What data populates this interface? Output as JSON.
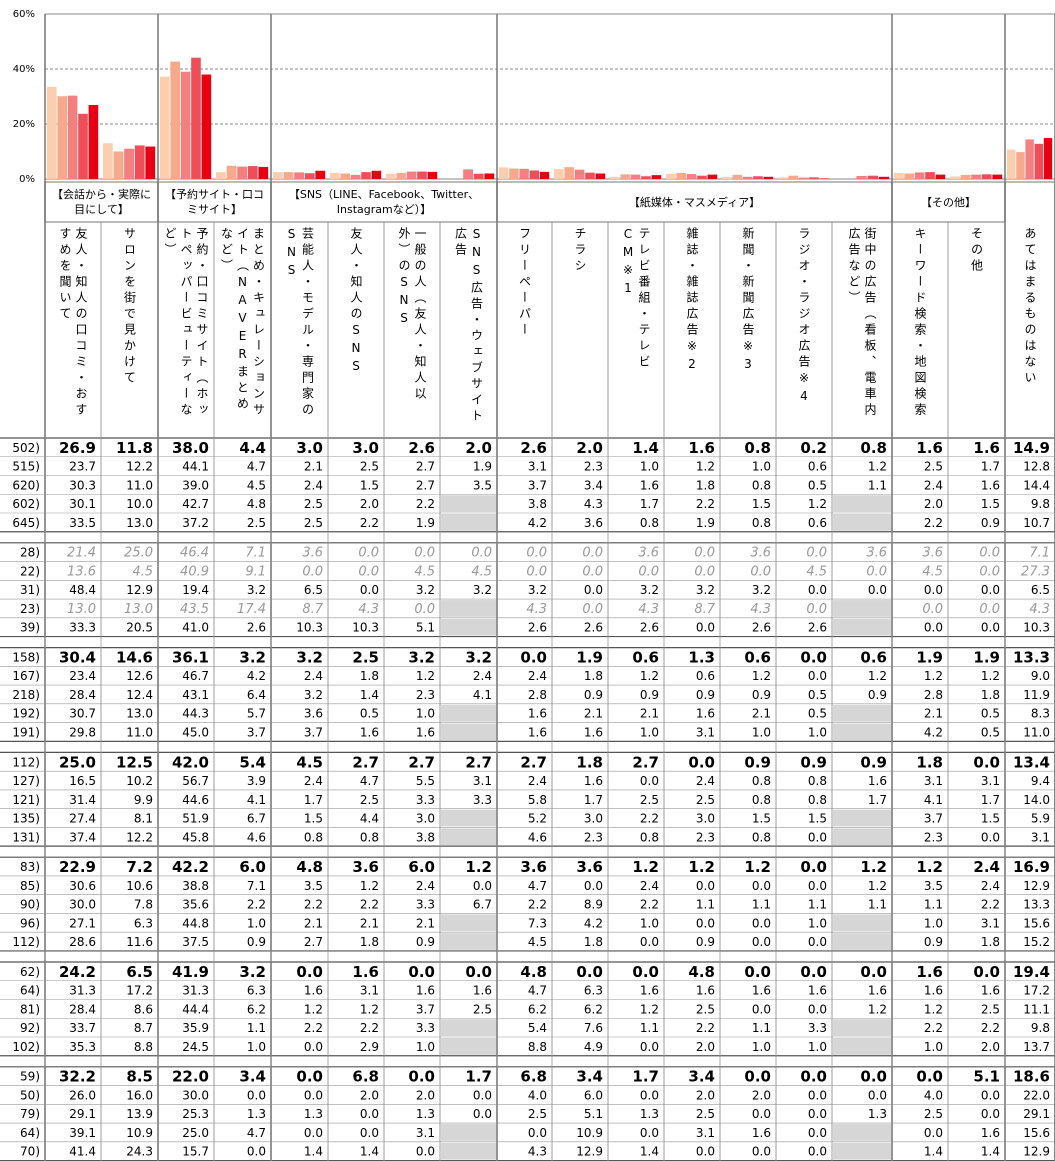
{
  "chart": {
    "ylim": [
      0,
      60
    ],
    "yticks": [
      {
        "value": 0,
        "label": "0%"
      },
      {
        "value": 20,
        "label": "20%"
      },
      {
        "value": 40,
        "label": "40%"
      },
      {
        "value": 60,
        "label": "60%"
      }
    ],
    "grid": true,
    "series_colors": [
      "#e60012",
      "#ef4e58",
      "#f47f80",
      "#f7a98b",
      "#fbcfae"
    ]
  },
  "header": {
    "groups": [
      {
        "label": "【会話から・実際に目にして】",
        "columns": [
          "友人・知人の口コミ・おすすめを聞いて",
          "サロンを街で見かけて"
        ]
      },
      {
        "label": "【予約サイト・口コミサイト】",
        "columns": [
          "予約・口コミサイト（ホットペッパービューティーなど）",
          "まとめ・キュレーションサイト（NAVERまとめなど）"
        ]
      },
      {
        "label": "【SNS（LINE、Facebook、Twitter、Instagramなど）】",
        "columns": [
          "芸能人・モデル・専門家のSNS",
          "友人・知人のSNS",
          "一般の人（友人・知人以外）のSNS",
          "SNS広告・ウェブサイト広告"
        ]
      },
      {
        "label": "【紙媒体・マスメディア】",
        "columns": [
          "フリーペーパー",
          "チラシ",
          "テレビ番組・テレビCM※1",
          "雑誌・雑誌広告※2",
          "新聞・新聞広告※3",
          "ラジオ・ラジオ広告※4",
          "街中の広告（看板、電車内広告など）"
        ]
      },
      {
        "label": "【その他】",
        "columns": [
          "キーワード検索・地図検索",
          "その他"
        ]
      },
      {
        "columns": [
          "あてはまるものはない"
        ]
      }
    ]
  },
  "table": {
    "blocks": [
      {
        "rows": [
          {
            "label": "502)",
            "style": "bold",
            "values": [
              "26.9",
              "11.8",
              "38.0",
              "4.4",
              "3.0",
              "3.0",
              "2.6",
              "2.0",
              "2.6",
              "2.0",
              "1.4",
              "1.6",
              "0.8",
              "0.2",
              "0.8",
              "1.6",
              "1.6",
              "14.9"
            ]
          },
          {
            "label": "515)",
            "values": [
              "23.7",
              "12.2",
              "44.1",
              "4.7",
              "2.1",
              "2.5",
              "2.7",
              "1.9",
              "3.1",
              "2.3",
              "1.0",
              "1.2",
              "1.0",
              "0.6",
              "1.2",
              "2.5",
              "1.7",
              "12.8"
            ]
          },
          {
            "label": "620)",
            "values": [
              "30.3",
              "11.0",
              "39.0",
              "4.5",
              "2.4",
              "1.5",
              "2.7",
              "3.5",
              "3.7",
              "3.4",
              "1.6",
              "1.8",
              "0.8",
              "0.5",
              "1.1",
              "2.4",
              "1.6",
              "14.4"
            ]
          },
          {
            "label": "602)",
            "values": [
              "30.1",
              "10.0",
              "42.7",
              "4.8",
              "2.5",
              "2.0",
              "2.2",
              null,
              "3.8",
              "4.3",
              "1.7",
              "2.2",
              "1.5",
              "1.2",
              null,
              "2.0",
              "1.5",
              "9.8"
            ]
          },
          {
            "label": "645)",
            "values": [
              "33.5",
              "13.0",
              "37.2",
              "2.5",
              "2.5",
              "2.2",
              "1.9",
              null,
              "4.2",
              "3.6",
              "0.8",
              "1.9",
              "0.8",
              "0.6",
              null,
              "2.2",
              "0.9",
              "10.7"
            ]
          }
        ]
      },
      {
        "rows": [
          {
            "label": "28)",
            "style": "italic",
            "values": [
              "21.4",
              "25.0",
              "46.4",
              "7.1",
              "3.6",
              "0.0",
              "0.0",
              "0.0",
              "0.0",
              "0.0",
              "3.6",
              "0.0",
              "3.6",
              "0.0",
              "3.6",
              "3.6",
              "0.0",
              "7.1"
            ]
          },
          {
            "label": "22)",
            "style": "italic",
            "values": [
              "13.6",
              "4.5",
              "40.9",
              "9.1",
              "0.0",
              "0.0",
              "4.5",
              "4.5",
              "0.0",
              "0.0",
              "0.0",
              "0.0",
              "0.0",
              "4.5",
              "0.0",
              "4.5",
              "0.0",
              "27.3"
            ]
          },
          {
            "label": "31)",
            "values": [
              "48.4",
              "12.9",
              "19.4",
              "3.2",
              "6.5",
              "0.0",
              "3.2",
              "3.2",
              "3.2",
              "0.0",
              "3.2",
              "3.2",
              "3.2",
              "0.0",
              "0.0",
              "0.0",
              "0.0",
              "6.5"
            ]
          },
          {
            "label": "23)",
            "style": "italic",
            "values": [
              "13.0",
              "13.0",
              "43.5",
              "17.4",
              "8.7",
              "4.3",
              "0.0",
              null,
              "4.3",
              "0.0",
              "4.3",
              "8.7",
              "4.3",
              "0.0",
              null,
              "0.0",
              "0.0",
              "4.3"
            ]
          },
          {
            "label": "39)",
            "values": [
              "33.3",
              "20.5",
              "41.0",
              "2.6",
              "10.3",
              "10.3",
              "5.1",
              null,
              "2.6",
              "2.6",
              "2.6",
              "0.0",
              "2.6",
              "2.6",
              null,
              "0.0",
              "0.0",
              "10.3"
            ]
          }
        ]
      },
      {
        "rows": [
          {
            "label": "158)",
            "style": "bold",
            "values": [
              "30.4",
              "14.6",
              "36.1",
              "3.2",
              "3.2",
              "2.5",
              "3.2",
              "3.2",
              "0.0",
              "1.9",
              "0.6",
              "1.3",
              "0.6",
              "0.0",
              "0.6",
              "1.9",
              "1.9",
              "13.3"
            ]
          },
          {
            "label": "167)",
            "values": [
              "23.4",
              "12.6",
              "46.7",
              "4.2",
              "2.4",
              "1.8",
              "1.2",
              "2.4",
              "2.4",
              "1.8",
              "1.2",
              "0.6",
              "1.2",
              "0.0",
              "1.2",
              "1.2",
              "1.2",
              "9.0"
            ]
          },
          {
            "label": "218)",
            "values": [
              "28.4",
              "12.4",
              "43.1",
              "6.4",
              "3.2",
              "1.4",
              "2.3",
              "4.1",
              "2.8",
              "0.9",
              "0.9",
              "0.9",
              "0.9",
              "0.5",
              "0.9",
              "2.8",
              "1.8",
              "11.9"
            ]
          },
          {
            "label": "192)",
            "values": [
              "30.7",
              "13.0",
              "44.3",
              "5.7",
              "3.6",
              "0.5",
              "1.0",
              null,
              "1.6",
              "2.1",
              "2.1",
              "1.6",
              "2.1",
              "0.5",
              null,
              "2.1",
              "0.5",
              "8.3"
            ]
          },
          {
            "label": "191)",
            "values": [
              "29.8",
              "11.0",
              "45.0",
              "3.7",
              "3.7",
              "1.6",
              "1.6",
              null,
              "1.6",
              "1.6",
              "1.0",
              "3.1",
              "1.0",
              "1.0",
              null,
              "4.2",
              "0.5",
              "11.0"
            ]
          }
        ]
      },
      {
        "rows": [
          {
            "label": "112)",
            "style": "bold",
            "values": [
              "25.0",
              "12.5",
              "42.0",
              "5.4",
              "4.5",
              "2.7",
              "2.7",
              "2.7",
              "2.7",
              "1.8",
              "2.7",
              "0.0",
              "0.9",
              "0.9",
              "0.9",
              "1.8",
              "0.0",
              "13.4"
            ]
          },
          {
            "label": "127)",
            "values": [
              "16.5",
              "10.2",
              "56.7",
              "3.9",
              "2.4",
              "4.7",
              "5.5",
              "3.1",
              "2.4",
              "1.6",
              "0.0",
              "2.4",
              "0.8",
              "0.8",
              "1.6",
              "3.1",
              "3.1",
              "9.4"
            ]
          },
          {
            "label": "121)",
            "values": [
              "31.4",
              "9.9",
              "44.6",
              "4.1",
              "1.7",
              "2.5",
              "3.3",
              "3.3",
              "5.8",
              "1.7",
              "2.5",
              "2.5",
              "0.8",
              "0.8",
              "1.7",
              "4.1",
              "1.7",
              "14.0"
            ]
          },
          {
            "label": "135)",
            "values": [
              "27.4",
              "8.1",
              "51.9",
              "6.7",
              "1.5",
              "4.4",
              "3.0",
              null,
              "5.2",
              "3.0",
              "2.2",
              "3.0",
              "1.5",
              "1.5",
              null,
              "3.7",
              "1.5",
              "5.9"
            ]
          },
          {
            "label": "131)",
            "values": [
              "37.4",
              "12.2",
              "45.8",
              "4.6",
              "0.8",
              "0.8",
              "3.8",
              null,
              "4.6",
              "2.3",
              "0.8",
              "2.3",
              "0.8",
              "0.0",
              null,
              "2.3",
              "0.0",
              "3.1"
            ]
          }
        ]
      },
      {
        "rows": [
          {
            "label": "83)",
            "style": "bold",
            "values": [
              "22.9",
              "7.2",
              "42.2",
              "6.0",
              "4.8",
              "3.6",
              "6.0",
              "1.2",
              "3.6",
              "3.6",
              "1.2",
              "1.2",
              "1.2",
              "0.0",
              "1.2",
              "1.2",
              "2.4",
              "16.9"
            ]
          },
          {
            "label": "85)",
            "values": [
              "30.6",
              "10.6",
              "38.8",
              "7.1",
              "3.5",
              "1.2",
              "2.4",
              "0.0",
              "4.7",
              "0.0",
              "2.4",
              "0.0",
              "0.0",
              "0.0",
              "1.2",
              "3.5",
              "2.4",
              "12.9"
            ]
          },
          {
            "label": "90)",
            "values": [
              "30.0",
              "7.8",
              "35.6",
              "2.2",
              "2.2",
              "2.2",
              "3.3",
              "6.7",
              "2.2",
              "8.9",
              "2.2",
              "1.1",
              "1.1",
              "1.1",
              "1.1",
              "1.1",
              "2.2",
              "13.3"
            ]
          },
          {
            "label": "96)",
            "values": [
              "27.1",
              "6.3",
              "44.8",
              "1.0",
              "2.1",
              "2.1",
              "2.1",
              null,
              "7.3",
              "4.2",
              "1.0",
              "0.0",
              "0.0",
              "1.0",
              null,
              "1.0",
              "3.1",
              "15.6"
            ]
          },
          {
            "label": "112)",
            "values": [
              "28.6",
              "11.6",
              "37.5",
              "0.9",
              "2.7",
              "1.8",
              "0.9",
              null,
              "4.5",
              "1.8",
              "0.0",
              "0.9",
              "0.0",
              "0.0",
              null,
              "0.9",
              "1.8",
              "15.2"
            ]
          }
        ]
      },
      {
        "rows": [
          {
            "label": "62)",
            "style": "bold",
            "values": [
              "24.2",
              "6.5",
              "41.9",
              "3.2",
              "0.0",
              "1.6",
              "0.0",
              "0.0",
              "4.8",
              "0.0",
              "0.0",
              "4.8",
              "0.0",
              "0.0",
              "0.0",
              "1.6",
              "0.0",
              "19.4"
            ]
          },
          {
            "label": "64)",
            "values": [
              "31.3",
              "17.2",
              "31.3",
              "6.3",
              "1.6",
              "3.1",
              "1.6",
              "1.6",
              "4.7",
              "6.3",
              "1.6",
              "1.6",
              "1.6",
              "1.6",
              "1.6",
              "1.6",
              "1.6",
              "17.2"
            ]
          },
          {
            "label": "81)",
            "values": [
              "28.4",
              "8.6",
              "44.4",
              "6.2",
              "1.2",
              "1.2",
              "3.7",
              "2.5",
              "6.2",
              "6.2",
              "1.2",
              "2.5",
              "0.0",
              "0.0",
              "1.2",
              "1.2",
              "2.5",
              "11.1"
            ]
          },
          {
            "label": "92)",
            "values": [
              "33.7",
              "8.7",
              "35.9",
              "1.1",
              "2.2",
              "2.2",
              "3.3",
              null,
              "5.4",
              "7.6",
              "1.1",
              "2.2",
              "1.1",
              "3.3",
              null,
              "2.2",
              "2.2",
              "9.8"
            ]
          },
          {
            "label": "102)",
            "values": [
              "35.3",
              "8.8",
              "24.5",
              "1.0",
              "0.0",
              "2.9",
              "1.0",
              null,
              "8.8",
              "4.9",
              "0.0",
              "2.0",
              "1.0",
              "1.0",
              null,
              "1.0",
              "2.0",
              "13.7"
            ]
          }
        ]
      },
      {
        "rows": [
          {
            "label": "59)",
            "style": "bold",
            "values": [
              "32.2",
              "8.5",
              "22.0",
              "3.4",
              "0.0",
              "6.8",
              "0.0",
              "1.7",
              "6.8",
              "3.4",
              "1.7",
              "3.4",
              "0.0",
              "0.0",
              "0.0",
              "0.0",
              "5.1",
              "18.6"
            ]
          },
          {
            "label": "50)",
            "values": [
              "26.0",
              "16.0",
              "30.0",
              "0.0",
              "0.0",
              "2.0",
              "2.0",
              "0.0",
              "4.0",
              "6.0",
              "0.0",
              "2.0",
              "2.0",
              "0.0",
              "0.0",
              "4.0",
              "0.0",
              "22.0"
            ]
          },
          {
            "label": "79)",
            "values": [
              "29.1",
              "13.9",
              "25.3",
              "1.3",
              "1.3",
              "0.0",
              "1.3",
              "0.0",
              "2.5",
              "5.1",
              "1.3",
              "2.5",
              "0.0",
              "0.0",
              "1.3",
              "2.5",
              "0.0",
              "29.1"
            ]
          },
          {
            "label": "64)",
            "values": [
              "39.1",
              "10.9",
              "25.0",
              "4.7",
              "0.0",
              "0.0",
              "3.1",
              null,
              "0.0",
              "10.9",
              "0.0",
              "3.1",
              "1.6",
              "0.0",
              null,
              "0.0",
              "1.6",
              "15.6"
            ]
          },
          {
            "label": "70)",
            "values": [
              "41.4",
              "24.3",
              "15.7",
              "0.0",
              "1.4",
              "1.4",
              "0.0",
              null,
              "4.3",
              "12.9",
              "1.4",
              "0.0",
              "0.0",
              "0.0",
              null,
              "1.4",
              "1.4",
              "12.9"
            ]
          }
        ]
      }
    ]
  }
}
